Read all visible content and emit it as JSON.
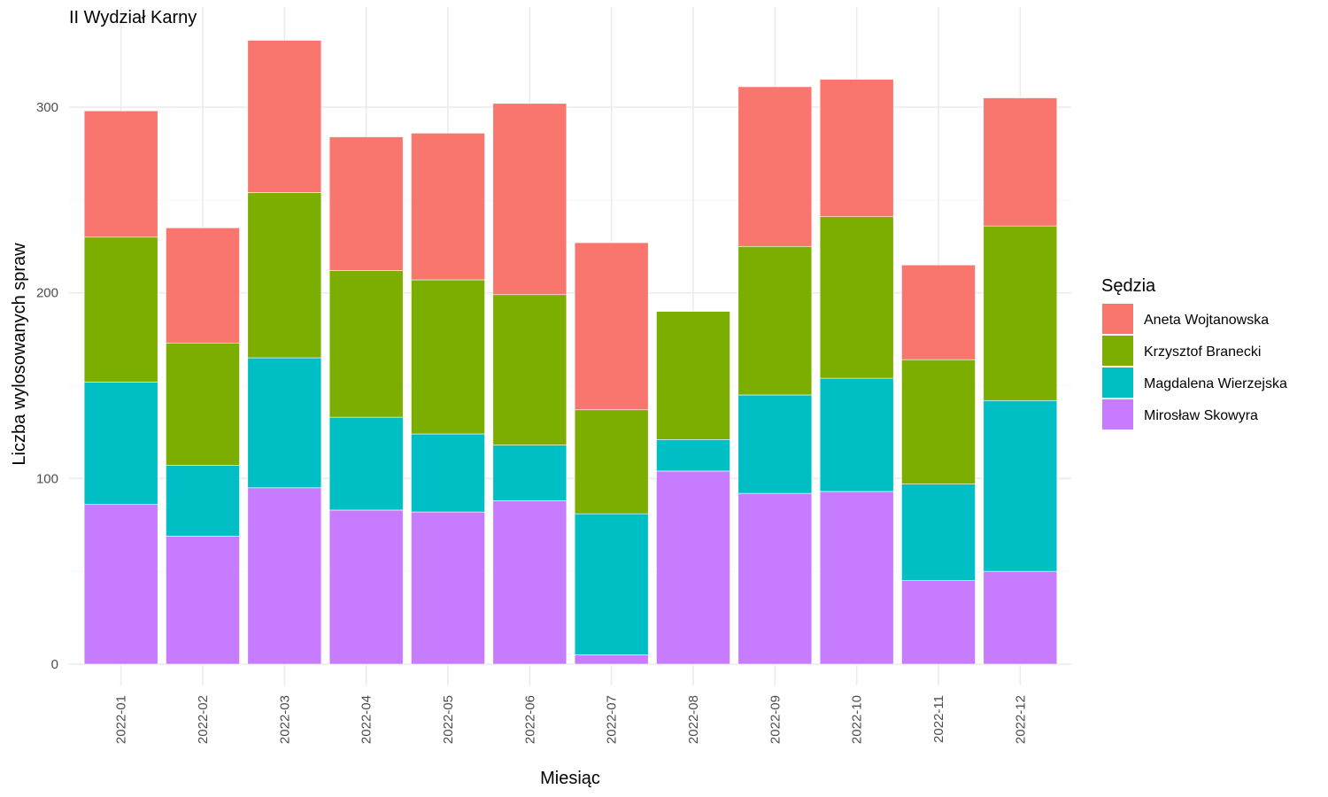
{
  "chart_data": {
    "type": "bar",
    "stacked": true,
    "title": "II Wydział Karny",
    "xlabel": "Miesiąc",
    "ylabel": "Liczba wylosowanych spraw",
    "categories": [
      "2022-01",
      "2022-02",
      "2022-03",
      "2022-04",
      "2022-05",
      "2022-06",
      "2022-07",
      "2022-08",
      "2022-09",
      "2022-10",
      "2022-11",
      "2022-12"
    ],
    "ylim": [
      0,
      335
    ],
    "yticks": [
      0,
      100,
      200,
      300
    ],
    "grid": true,
    "legend": {
      "title": "Sędzia",
      "position": "right"
    },
    "series": [
      {
        "name": "Mirosław Skowyra",
        "color": "#C77CFF",
        "values": [
          86,
          69,
          95,
          83,
          82,
          88,
          5,
          104,
          92,
          93,
          45,
          50
        ]
      },
      {
        "name": "Magdalena Wierzejska",
        "color": "#00BFC4",
        "values": [
          66,
          38,
          70,
          50,
          42,
          30,
          76,
          17,
          53,
          61,
          52,
          92
        ]
      },
      {
        "name": "Krzysztof Branecki",
        "color": "#7CAE00",
        "values": [
          78,
          66,
          89,
          79,
          83,
          81,
          56,
          69,
          80,
          87,
          67,
          94
        ]
      },
      {
        "name": "Aneta Wojtanowska",
        "color": "#F8766D",
        "values": [
          68,
          62,
          82,
          72,
          79,
          103,
          90,
          0,
          86,
          74,
          51,
          69
        ]
      }
    ],
    "legend_order": [
      "Aneta Wojtanowska",
      "Krzysztof Branecki",
      "Magdalena Wierzejska",
      "Mirosław Skowyra"
    ]
  }
}
